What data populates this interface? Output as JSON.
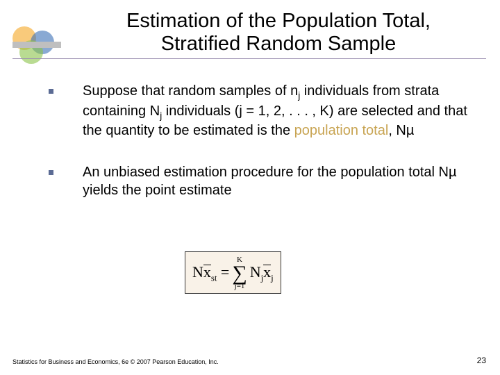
{
  "title": {
    "line1": "Estimation of the Population Total,",
    "line2": "Stratified Random Sample"
  },
  "bullets": [
    {
      "pre1": "Suppose that random samples of  n",
      "sub1": "j",
      "mid1": " individuals from strata containing  N",
      "sub2": "j",
      "mid2": " individuals (j = 1, 2, . . . , K) are selected and that the quantity to be estimated is the ",
      "hl": "population total",
      "post": ",  Nµ"
    },
    {
      "text": "An unbiased estimation procedure for the population total  Nµ  yields the point estimate"
    }
  ],
  "formula": {
    "N": "N",
    "x": "x",
    "st": "st",
    "eq": " = ",
    "K": "K",
    "sum": "∑",
    "jeq1": "j=1",
    "Nj_N": "N",
    "Nj_j": "j",
    "xj_x": "x",
    "xj_j": "j"
  },
  "footer": "Statistics for Business and Economics, 6e © 2007 Pearson Education, Inc.",
  "pagenum": "23",
  "colors": {
    "underline": "#9b8fb0",
    "bullet": "#5b6b94",
    "highlight": "#c8a452",
    "formula_bg": "#f9f2e8"
  }
}
